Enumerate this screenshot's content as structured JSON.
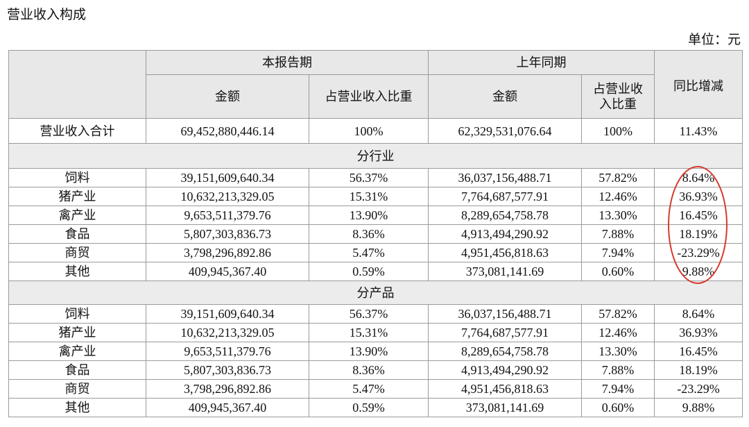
{
  "title": "营业收入构成",
  "unit": "单位：元",
  "table": {
    "header": {
      "current": "本报告期",
      "previous": "上年同期",
      "change": "同比增减",
      "amount": "金额",
      "share": "占营业收入比重",
      "amount_prev": "金额",
      "share_prev": "占营业收入比重"
    },
    "total": [
      "营业收入合计",
      "69,452,880,446.14",
      "100%",
      "62,329,531,076.64",
      "100%",
      "11.43%"
    ],
    "sections": [
      {
        "title": "分行业",
        "rows": [
          [
            "饲料",
            "39,151,609,640.34",
            "56.37%",
            "36,037,156,488.71",
            "57.82%",
            "8.64%"
          ],
          [
            "猪产业",
            "10,632,213,329.05",
            "15.31%",
            "7,764,687,577.91",
            "12.46%",
            "36.93%"
          ],
          [
            "禽产业",
            "9,653,511,379.76",
            "13.90%",
            "8,289,654,758.78",
            "13.30%",
            "16.45%"
          ],
          [
            "食品",
            "5,807,303,836.73",
            "8.36%",
            "4,913,494,290.92",
            "7.88%",
            "18.19%"
          ],
          [
            "商贸",
            "3,798,296,892.86",
            "5.47%",
            "4,951,456,818.63",
            "7.94%",
            "-23.29%"
          ],
          [
            "其他",
            "409,945,367.40",
            "0.59%",
            "373,081,141.69",
            "0.60%",
            "9.88%"
          ]
        ]
      },
      {
        "title": "分产品",
        "rows": [
          [
            "饲料",
            "39,151,609,640.34",
            "56.37%",
            "36,037,156,488.71",
            "57.82%",
            "8.64%"
          ],
          [
            "猪产业",
            "10,632,213,329.05",
            "15.31%",
            "7,764,687,577.91",
            "12.46%",
            "36.93%"
          ],
          [
            "禽产业",
            "9,653,511,379.76",
            "13.90%",
            "8,289,654,758.78",
            "13.30%",
            "16.45%"
          ],
          [
            "食品",
            "5,807,303,836.73",
            "8.36%",
            "4,913,494,290.92",
            "7.88%",
            "18.19%"
          ],
          [
            "商贸",
            "3,798,296,892.86",
            "5.47%",
            "4,951,456,818.63",
            "7.94%",
            "-23.29%"
          ],
          [
            "其他",
            "409,945,367.40",
            "0.59%",
            "373,081,141.69",
            "0.60%",
            "9.88%"
          ]
        ]
      }
    ]
  }
}
